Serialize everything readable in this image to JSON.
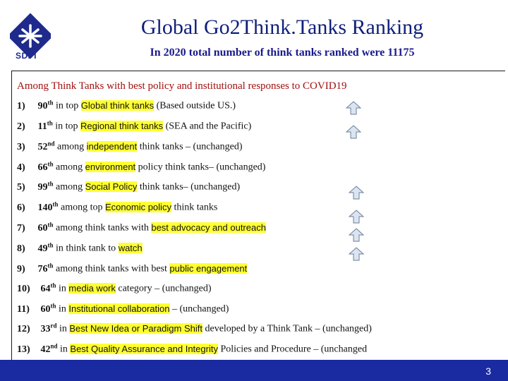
{
  "header": {
    "logo_text": "SDPI",
    "title": "Global Go2Think.Tanks Ranking",
    "subtitle": "In 2020 total number of think tanks ranked were 11175"
  },
  "section_heading": "Among Think Tanks with best policy and institutional responses to COVID19",
  "items": [
    {
      "num": "1)",
      "rank": "90",
      "suffix": "th",
      "pre": " in top ",
      "hl": "Global think tanks",
      "post": " (Based outside US.)"
    },
    {
      "num": "2)",
      "rank": "11",
      "suffix": "th",
      "pre": " in top ",
      "hl": "Regional think tanks",
      "post": " (SEA and the Pacific)"
    },
    {
      "num": "3)",
      "rank": "52",
      "suffix": "nd",
      "pre": "  among ",
      "hl": "independent",
      "post": " think tanks – (unchanged)"
    },
    {
      "num": "4)",
      "rank": "66",
      "suffix": "th",
      "pre": " among ",
      "hl": "environment",
      "post": " policy think tanks– (unchanged)"
    },
    {
      "num": "5)",
      "rank": "99",
      "suffix": "th",
      "pre": " among ",
      "hl": "Social Policy",
      "post": "  think tanks– (unchanged)"
    },
    {
      "num": "6)",
      "rank": "140",
      "suffix": "th",
      "pre": " among top ",
      "hl": "Economic policy",
      "post": " think tanks"
    },
    {
      "num": "7)",
      "rank": "60",
      "suffix": "th",
      "pre": " among think tanks with ",
      "hl": "best advocacy and outreach",
      "post": ""
    },
    {
      "num": "8)",
      "rank": "49",
      "suffix": "th",
      "pre": " in think tank to ",
      "hl": "watch",
      "post": ""
    },
    {
      "num": "9)",
      "rank": "76",
      "suffix": "th",
      "pre": " among think tanks with best ",
      "hl": "public engagement",
      "post": ""
    },
    {
      "num": "10)",
      "rank": "64",
      "suffix": "th",
      "pre": " in ",
      "hl": "media work",
      "post": " category – (unchanged)"
    },
    {
      "num": "11)",
      "rank": "60",
      "suffix": "th",
      "pre": " in ",
      "hl": "Institutional collaboration",
      "post": " – (unchanged)"
    },
    {
      "num": "12)",
      "rank": "33",
      "suffix": "rd",
      "pre": " in ",
      "hl": "Best New Idea or Paradigm Shift",
      "post": " developed by a Think Tank – (unchanged)"
    },
    {
      "num": "13)",
      "rank": "42",
      "suffix": "nd",
      "pre": " in ",
      "hl": "Best Quality Assurance and Integrity",
      "post": " Policies and Procedure – (unchanged"
    }
  ],
  "arrow_icon": "up-arrow-icon",
  "colors": {
    "title": "#0f1f7a",
    "heading": "#a01010",
    "highlight": "#ffff33",
    "footer": "#1a2aa0",
    "arrow_fill": "#dbe4f0",
    "arrow_stroke": "#6b7f99"
  },
  "footer": {
    "page_number": "3"
  }
}
